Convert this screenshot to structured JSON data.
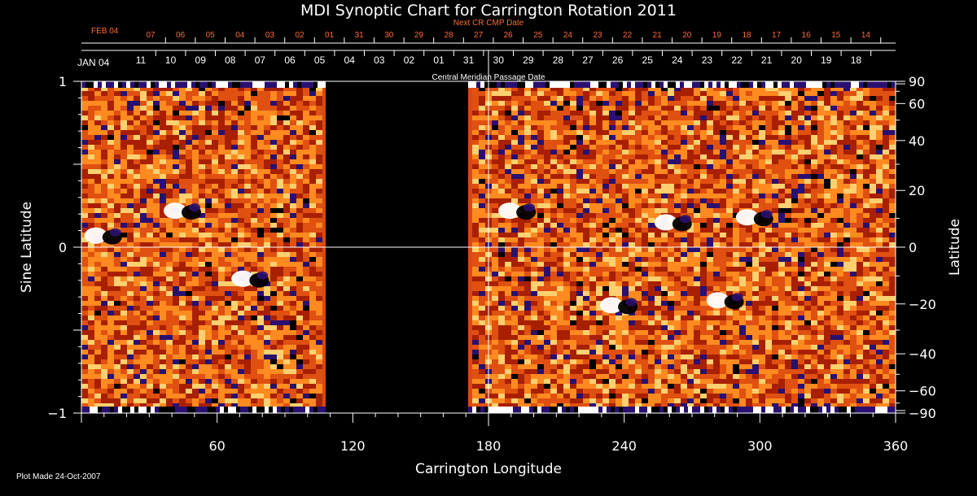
{
  "chart_data": {
    "type": "heatmap",
    "title": "MDI Synoptic Chart for Carrington Rotation 2011",
    "xlabel": "Carrington Longitude",
    "ylabel_left": "Sine Latitude",
    "ylabel_right": "Latitude",
    "top_axis_label": "Central Meridian Passage Date",
    "next_cr_label": "Next CR CMP Date",
    "footer": "Plot Made 24-Oct-2007",
    "xlim": [
      0,
      360
    ],
    "ylim": [
      -1,
      1
    ],
    "x_ticks": [
      60,
      120,
      180,
      240,
      300,
      360
    ],
    "y_ticks_left": [
      {
        "v": 1,
        "label": "1"
      },
      {
        "v": 0,
        "label": "0"
      },
      {
        "v": -1,
        "label": "−1"
      }
    ],
    "y_ticks_right": [
      90,
      60,
      40,
      20,
      0,
      -20,
      -40,
      -60,
      -90
    ],
    "y_tick_labels_right": [
      "90",
      "60",
      "40",
      "20",
      "0",
      "−20",
      "−40",
      "−60",
      "−90"
    ],
    "data_gap": {
      "from_longitude": 108,
      "to_longitude": 171,
      "value": "no data"
    },
    "colormap": [
      "#000000",
      "#2a1070",
      "#a82000",
      "#e05010",
      "#ff8a20",
      "#ffd070",
      "#ffffff"
    ],
    "cmp_dates_main": {
      "start_label": "JAN 04",
      "labels": [
        "11",
        "10",
        "09",
        "08",
        "07",
        "06",
        "05",
        "04",
        "03",
        "02",
        "01",
        "31",
        "30",
        "29",
        "28",
        "27",
        "26",
        "25",
        "24",
        "23",
        "22",
        "21",
        "20",
        "19",
        "18"
      ]
    },
    "cmp_dates_next": {
      "start_label": "FEB 04",
      "labels": [
        "07",
        "06",
        "05",
        "04",
        "03",
        "02",
        "01",
        "31",
        "30",
        "29",
        "28",
        "27",
        "26",
        "25",
        "24",
        "23",
        "22",
        "21",
        "20",
        "19",
        "18",
        "17",
        "16",
        "15",
        "14"
      ]
    },
    "active_regions": [
      {
        "longitude": 10,
        "sine_latitude": 0.07,
        "polarity": "bipolar"
      },
      {
        "longitude": 45,
        "sine_latitude": 0.22,
        "polarity": "bipolar"
      },
      {
        "longitude": 75,
        "sine_latitude": -0.19,
        "polarity": "bipolar"
      },
      {
        "longitude": 193,
        "sine_latitude": 0.22,
        "polarity": "bipolar"
      },
      {
        "longitude": 262,
        "sine_latitude": 0.15,
        "polarity": "bipolar"
      },
      {
        "longitude": 298,
        "sine_latitude": 0.18,
        "polarity": "bipolar"
      },
      {
        "longitude": 238,
        "sine_latitude": -0.35,
        "polarity": "bipolar"
      },
      {
        "longitude": 285,
        "sine_latitude": -0.32,
        "polarity": "bipolar"
      }
    ]
  }
}
